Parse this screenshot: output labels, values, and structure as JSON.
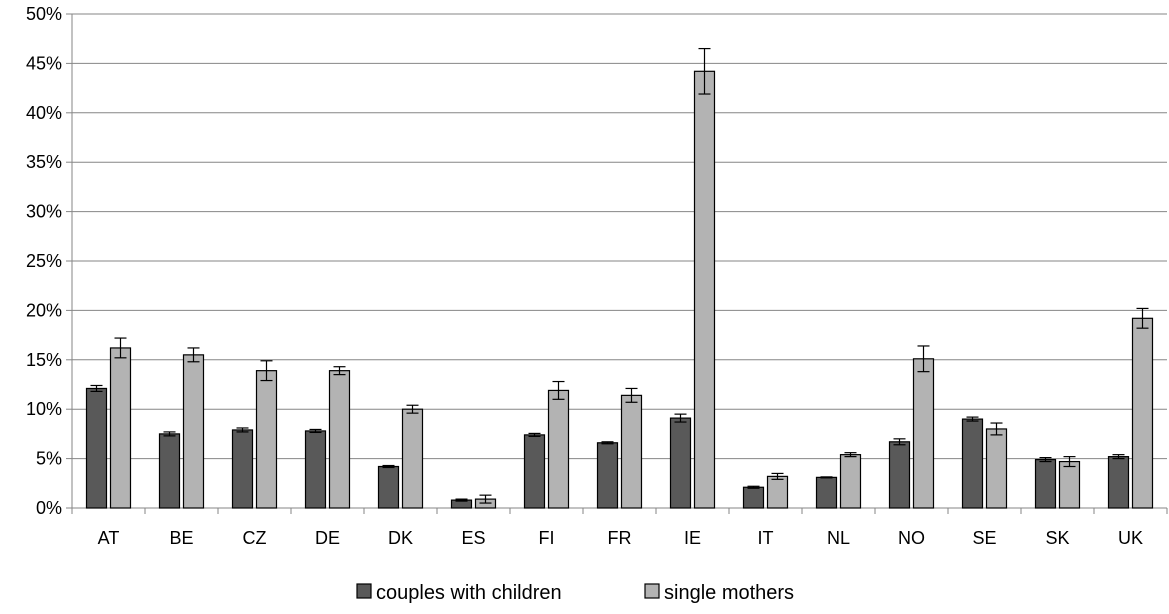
{
  "chart_data": {
    "type": "bar",
    "categories": [
      "AT",
      "BE",
      "CZ",
      "DE",
      "DK",
      "ES",
      "FI",
      "FR",
      "IE",
      "IT",
      "NL",
      "NO",
      "SE",
      "SK",
      "UK"
    ],
    "series": [
      {
        "name": "couples with children",
        "color": "#595959",
        "values": [
          12.1,
          7.5,
          7.9,
          7.8,
          4.2,
          0.8,
          7.4,
          6.6,
          9.1,
          2.1,
          3.1,
          6.7,
          9.0,
          4.9,
          5.2
        ],
        "error": [
          0.3,
          0.2,
          0.2,
          0.15,
          0.1,
          0.1,
          0.15,
          0.1,
          0.4,
          0.1,
          0.05,
          0.3,
          0.2,
          0.2,
          0.2
        ]
      },
      {
        "name": "single mothers",
        "color": "#b3b3b3",
        "values": [
          16.2,
          15.5,
          13.9,
          13.9,
          10.0,
          0.9,
          11.9,
          11.4,
          44.2,
          3.2,
          5.4,
          15.1,
          8.0,
          4.7,
          19.2
        ]
      }
    ],
    "series_errors": [
      [
        0.3,
        0.2,
        0.2,
        0.15,
        0.1,
        0.1,
        0.15,
        0.1,
        0.4,
        0.1,
        0.05,
        0.3,
        0.2,
        0.2,
        0.2
      ],
      [
        1.0,
        0.7,
        1.0,
        0.4,
        0.4,
        0.4,
        0.9,
        0.7,
        2.3,
        0.3,
        0.2,
        1.3,
        0.6,
        0.5,
        1.0
      ]
    ],
    "ylim": [
      0,
      50
    ],
    "yticks": [
      "0%",
      "5%",
      "10%",
      "15%",
      "20%",
      "25%",
      "30%",
      "35%",
      "40%",
      "45%",
      "50%"
    ],
    "grid": true,
    "legend_position": "bottom",
    "title": "",
    "xlabel": "",
    "ylabel": ""
  }
}
